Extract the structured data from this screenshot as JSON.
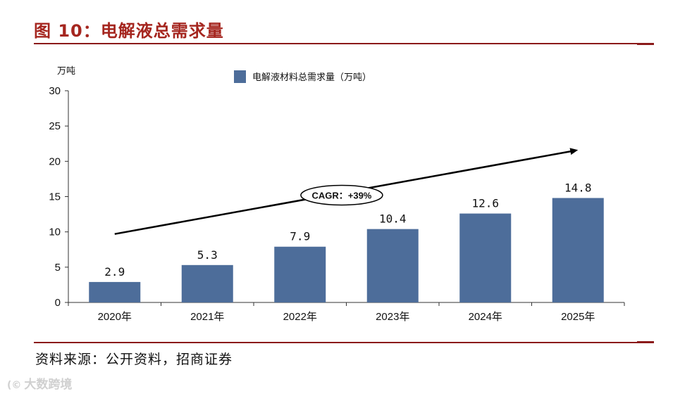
{
  "page": {
    "title": "图 10：电解液总需求量",
    "source": "资料来源：公开资料，招商证券",
    "watermark": "大数跨境",
    "watermark_logo": "(©"
  },
  "colors": {
    "accent": "#a5261f",
    "rule": "#8b1a1a",
    "bar": "#4d6d9a",
    "axis": "#333333"
  },
  "chart_data": {
    "type": "bar",
    "title": "",
    "ylabel": "万吨",
    "xlabel": "",
    "categories": [
      "2020年",
      "2021年",
      "2022年",
      "2023年",
      "2024年",
      "2025年"
    ],
    "series": [
      {
        "name": "电解液材料总需求量（万吨）",
        "values": [
          2.9,
          5.3,
          7.9,
          10.4,
          12.6,
          14.8
        ],
        "labels": [
          "2.9",
          "5.3",
          "7.9",
          "10.4",
          "12.6",
          "14.8"
        ]
      }
    ],
    "ylim": [
      0,
      30
    ],
    "yticks": [
      0,
      5,
      10,
      15,
      20,
      25,
      30
    ],
    "legend": "top-center",
    "grid": false,
    "annotation": {
      "text": "CAGR：+39%",
      "trend_arrow": {
        "from_category": 0,
        "from_value": 9.7,
        "to_category": 5,
        "to_value": 21.6
      },
      "text_at": {
        "category": 2.45,
        "value": 15.6
      }
    }
  }
}
